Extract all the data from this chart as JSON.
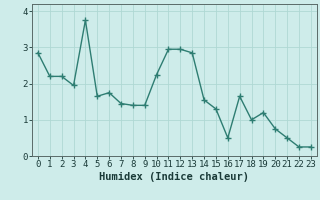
{
  "x": [
    0,
    1,
    2,
    3,
    4,
    5,
    6,
    7,
    8,
    9,
    10,
    11,
    12,
    13,
    14,
    15,
    16,
    17,
    18,
    19,
    20,
    21,
    22,
    23
  ],
  "y": [
    2.85,
    2.2,
    2.2,
    1.95,
    3.75,
    1.65,
    1.75,
    1.45,
    1.4,
    1.4,
    2.25,
    2.95,
    2.95,
    2.85,
    1.55,
    1.3,
    0.5,
    1.65,
    1.0,
    1.2,
    0.75,
    0.5,
    0.25,
    0.25
  ],
  "line_color": "#2e7d72",
  "marker": "+",
  "marker_size": 4,
  "marker_linewidth": 1.0,
  "bg_color": "#ceecea",
  "grid_color": "#afd8d4",
  "axis_line_color": "#5a6a68",
  "xlabel": "Humidex (Indice chaleur)",
  "xlim": [
    -0.5,
    23.5
  ],
  "ylim": [
    0,
    4.2
  ],
  "ytick_values": [
    0,
    1,
    2,
    3,
    4
  ],
  "xlabel_fontsize": 7.5,
  "tick_fontsize": 6.5,
  "linewidth": 1.0
}
